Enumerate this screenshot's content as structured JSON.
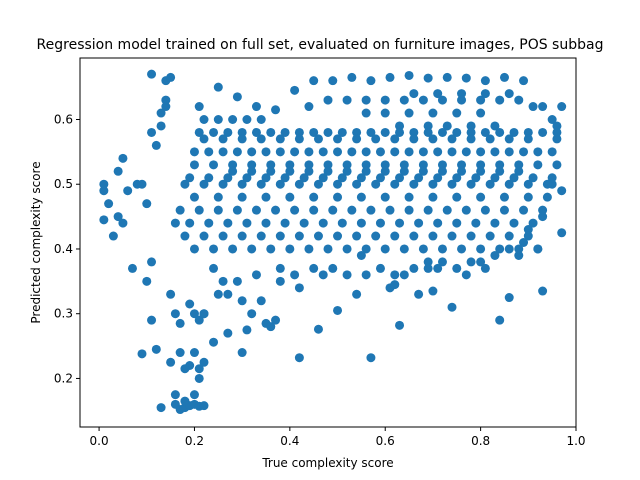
{
  "chart_data": {
    "type": "scatter",
    "title": "Regression model trained on full set, evaluated on furniture images, POS subbag",
    "xlabel": "True complexity score",
    "ylabel": "Predicted complexity score",
    "xlim": [
      -0.04,
      1.0
    ],
    "ylim": [
      0.125,
      0.695
    ],
    "xticks": [
      0.0,
      0.2,
      0.4,
      0.6,
      0.8,
      1.0
    ],
    "xtick_labels": [
      "0.0",
      "0.2",
      "0.4",
      "0.6",
      "0.8",
      "1.0"
    ],
    "yticks": [
      0.2,
      0.3,
      0.4,
      0.5,
      0.6
    ],
    "ytick_labels": [
      "0.2",
      "0.3",
      "0.4",
      "0.5",
      "0.6"
    ],
    "grid": false,
    "legend": "none",
    "marker_color": "#1f77b4",
    "series": [
      {
        "x": [
          0.13,
          0.16,
          0.17,
          0.18,
          0.19,
          0.2,
          0.21,
          0.21,
          0.22,
          0.16,
          0.18,
          0.2,
          0.22,
          0.19,
          0.21,
          0.15,
          0.17,
          0.2,
          0.18,
          0.17,
          0.16,
          0.2,
          0.21,
          0.22,
          0.24,
          0.25,
          0.27,
          0.3,
          0.31,
          0.11,
          0.09,
          0.12,
          0.1,
          0.07,
          0.11,
          0.15,
          0.19,
          0.22,
          0.27,
          0.3,
          0.32,
          0.35,
          0.36,
          0.37,
          0.42,
          0.46,
          0.5,
          0.54,
          0.57,
          0.61,
          0.63,
          0.67,
          0.7,
          0.74,
          0.77,
          0.8,
          0.84,
          0.86,
          0.93,
          0.55,
          0.64,
          0.47,
          0.42,
          0.38,
          0.34,
          0.62,
          0.69,
          0.71,
          0.01,
          0.01,
          0.01,
          0.02,
          0.03,
          0.04,
          0.05,
          0.04,
          0.06,
          0.05,
          0.08,
          0.09,
          0.1,
          0.12,
          0.11,
          0.13,
          0.14,
          0.14,
          0.97,
          0.97,
          0.96,
          0.95,
          0.97,
          0.96,
          0.95,
          0.94,
          0.93,
          0.9,
          0.88,
          0.92,
          0.89,
          0.86,
          0.83,
          0.81,
          0.78,
          0.75,
          0.72,
          0.69,
          0.66,
          0.62,
          0.59,
          0.56,
          0.52,
          0.49,
          0.45,
          0.41,
          0.38,
          0.33,
          0.29,
          0.26,
          0.24,
          0.13,
          0.14,
          0.15,
          0.11,
          0.21,
          0.25,
          0.29,
          0.33,
          0.37,
          0.41,
          0.45,
          0.49,
          0.53,
          0.57,
          0.61,
          0.65,
          0.69,
          0.73,
          0.77,
          0.81,
          0.85,
          0.89,
          0.93,
          0.66,
          0.71,
          0.76,
          0.81,
          0.86,
          0.91,
          0.44,
          0.48,
          0.52,
          0.56,
          0.6,
          0.64,
          0.68,
          0.72,
          0.76,
          0.8,
          0.84,
          0.88,
          0.56,
          0.6,
          0.65,
          0.7,
          0.75,
          0.8,
          0.63,
          0.69,
          0.73,
          0.78,
          0.83,
          0.22,
          0.25,
          0.28,
          0.31,
          0.34,
          0.21,
          0.24,
          0.27,
          0.3,
          0.33,
          0.36,
          0.39,
          0.42,
          0.45,
          0.48,
          0.51,
          0.54,
          0.57,
          0.6,
          0.63,
          0.66,
          0.69,
          0.72,
          0.75,
          0.78,
          0.81,
          0.84,
          0.87,
          0.9,
          0.93,
          0.96,
          0.2,
          0.23,
          0.26,
          0.29,
          0.32,
          0.35,
          0.38,
          0.41,
          0.44,
          0.47,
          0.5,
          0.53,
          0.56,
          0.59,
          0.62,
          0.65,
          0.68,
          0.71,
          0.74,
          0.77,
          0.8,
          0.83,
          0.86,
          0.89,
          0.92,
          0.95,
          0.2,
          0.24,
          0.28,
          0.32,
          0.36,
          0.4,
          0.44,
          0.48,
          0.52,
          0.56,
          0.6,
          0.64,
          0.68,
          0.72,
          0.76,
          0.8,
          0.84,
          0.88,
          0.92,
          0.96,
          0.19,
          0.23,
          0.27,
          0.31,
          0.35,
          0.39,
          0.43,
          0.47,
          0.51,
          0.55,
          0.59,
          0.63,
          0.67,
          0.71,
          0.75,
          0.79,
          0.83,
          0.87,
          0.91,
          0.95,
          0.18,
          0.22,
          0.26,
          0.3,
          0.34,
          0.38,
          0.42,
          0.46,
          0.5,
          0.54,
          0.58,
          0.62,
          0.66,
          0.7,
          0.74,
          0.78,
          0.82,
          0.86,
          0.9,
          0.94,
          0.2,
          0.25,
          0.3,
          0.35,
          0.4,
          0.45,
          0.5,
          0.55,
          0.6,
          0.65,
          0.7,
          0.75,
          0.8,
          0.85,
          0.9,
          0.17,
          0.21,
          0.25,
          0.29,
          0.33,
          0.37,
          0.41,
          0.45,
          0.49,
          0.53,
          0.57,
          0.61,
          0.65,
          0.69,
          0.73,
          0.77,
          0.81,
          0.85,
          0.89,
          0.93,
          0.16,
          0.19,
          0.23,
          0.27,
          0.31,
          0.35,
          0.39,
          0.43,
          0.47,
          0.51,
          0.55,
          0.59,
          0.63,
          0.67,
          0.71,
          0.75,
          0.79,
          0.83,
          0.87,
          0.91,
          0.18,
          0.22,
          0.26,
          0.3,
          0.34,
          0.38,
          0.42,
          0.46,
          0.5,
          0.54,
          0.58,
          0.62,
          0.66,
          0.7,
          0.74,
          0.78,
          0.82,
          0.86,
          0.9,
          0.2,
          0.24,
          0.28,
          0.32,
          0.36,
          0.4,
          0.44,
          0.48,
          0.52,
          0.56,
          0.6,
          0.64,
          0.68,
          0.72,
          0.76,
          0.8,
          0.84,
          0.88,
          0.92,
          0.22,
          0.26,
          0.3,
          0.34,
          0.38,
          0.42,
          0.46,
          0.5,
          0.54,
          0.58,
          0.62,
          0.66,
          0.7,
          0.74,
          0.78,
          0.82,
          0.86,
          0.9,
          0.28,
          0.32,
          0.36,
          0.4,
          0.44,
          0.48,
          0.52,
          0.56,
          0.6,
          0.64,
          0.68,
          0.72,
          0.76,
          0.8,
          0.84,
          0.88
        ],
        "y": [
          0.155,
          0.16,
          0.152,
          0.155,
          0.158,
          0.16,
          0.157,
          0.215,
          0.225,
          0.175,
          0.165,
          0.175,
          0.158,
          0.22,
          0.2,
          0.225,
          0.24,
          0.24,
          0.215,
          0.285,
          0.3,
          0.3,
          0.29,
          0.3,
          0.256,
          0.33,
          0.27,
          0.24,
          0.275,
          0.29,
          0.238,
          0.245,
          0.35,
          0.37,
          0.38,
          0.33,
          0.315,
          0.3,
          0.33,
          0.32,
          0.3,
          0.285,
          0.28,
          0.29,
          0.232,
          0.276,
          0.305,
          0.33,
          0.232,
          0.34,
          0.282,
          0.33,
          0.335,
          0.31,
          0.36,
          0.38,
          0.29,
          0.325,
          0.335,
          0.39,
          0.36,
          0.36,
          0.34,
          0.35,
          0.32,
          0.345,
          0.38,
          0.37,
          0.445,
          0.49,
          0.5,
          0.47,
          0.42,
          0.45,
          0.44,
          0.52,
          0.49,
          0.54,
          0.5,
          0.5,
          0.47,
          0.56,
          0.58,
          0.59,
          0.62,
          0.66,
          0.425,
          0.49,
          0.57,
          0.6,
          0.62,
          0.59,
          0.5,
          0.48,
          0.45,
          0.43,
          0.39,
          0.4,
          0.41,
          0.4,
          0.39,
          0.37,
          0.38,
          0.37,
          0.38,
          0.37,
          0.37,
          0.36,
          0.37,
          0.36,
          0.36,
          0.37,
          0.37,
          0.36,
          0.37,
          0.36,
          0.35,
          0.35,
          0.37,
          0.61,
          0.63,
          0.665,
          0.67,
          0.62,
          0.65,
          0.635,
          0.62,
          0.615,
          0.645,
          0.66,
          0.66,
          0.665,
          0.66,
          0.665,
          0.668,
          0.664,
          0.665,
          0.664,
          0.66,
          0.665,
          0.66,
          0.62,
          0.64,
          0.64,
          0.64,
          0.64,
          0.64,
          0.62,
          0.62,
          0.63,
          0.63,
          0.63,
          0.63,
          0.63,
          0.63,
          0.63,
          0.63,
          0.63,
          0.63,
          0.63,
          0.61,
          0.61,
          0.61,
          0.61,
          0.61,
          0.61,
          0.59,
          0.59,
          0.59,
          0.59,
          0.59,
          0.6,
          0.6,
          0.6,
          0.6,
          0.6,
          0.58,
          0.58,
          0.58,
          0.58,
          0.58,
          0.58,
          0.58,
          0.58,
          0.58,
          0.58,
          0.58,
          0.58,
          0.58,
          0.58,
          0.58,
          0.58,
          0.58,
          0.58,
          0.58,
          0.58,
          0.58,
          0.58,
          0.58,
          0.58,
          0.58,
          0.58,
          0.55,
          0.55,
          0.55,
          0.55,
          0.55,
          0.55,
          0.55,
          0.55,
          0.55,
          0.55,
          0.55,
          0.55,
          0.55,
          0.55,
          0.55,
          0.55,
          0.55,
          0.55,
          0.55,
          0.55,
          0.55,
          0.55,
          0.55,
          0.55,
          0.55,
          0.55,
          0.53,
          0.53,
          0.53,
          0.53,
          0.53,
          0.53,
          0.53,
          0.53,
          0.53,
          0.53,
          0.53,
          0.53,
          0.53,
          0.53,
          0.53,
          0.53,
          0.53,
          0.53,
          0.53,
          0.53,
          0.51,
          0.51,
          0.51,
          0.51,
          0.51,
          0.51,
          0.51,
          0.51,
          0.51,
          0.51,
          0.51,
          0.51,
          0.51,
          0.51,
          0.51,
          0.51,
          0.51,
          0.51,
          0.51,
          0.51,
          0.5,
          0.5,
          0.5,
          0.5,
          0.5,
          0.5,
          0.5,
          0.5,
          0.5,
          0.5,
          0.5,
          0.5,
          0.5,
          0.5,
          0.5,
          0.5,
          0.5,
          0.5,
          0.5,
          0.5,
          0.48,
          0.48,
          0.48,
          0.48,
          0.48,
          0.48,
          0.48,
          0.48,
          0.48,
          0.48,
          0.48,
          0.48,
          0.48,
          0.48,
          0.48,
          0.46,
          0.46,
          0.46,
          0.46,
          0.46,
          0.46,
          0.46,
          0.46,
          0.46,
          0.46,
          0.46,
          0.46,
          0.46,
          0.46,
          0.46,
          0.46,
          0.46,
          0.46,
          0.46,
          0.46,
          0.44,
          0.44,
          0.44,
          0.44,
          0.44,
          0.44,
          0.44,
          0.44,
          0.44,
          0.44,
          0.44,
          0.44,
          0.44,
          0.44,
          0.44,
          0.44,
          0.44,
          0.44,
          0.44,
          0.44,
          0.42,
          0.42,
          0.42,
          0.42,
          0.42,
          0.42,
          0.42,
          0.42,
          0.42,
          0.42,
          0.42,
          0.42,
          0.42,
          0.42,
          0.42,
          0.42,
          0.42,
          0.42,
          0.42,
          0.4,
          0.4,
          0.4,
          0.4,
          0.4,
          0.4,
          0.4,
          0.4,
          0.4,
          0.4,
          0.4,
          0.4,
          0.4,
          0.4,
          0.4,
          0.4,
          0.4,
          0.4,
          0.4,
          0.57,
          0.57,
          0.57,
          0.57,
          0.57,
          0.57,
          0.57,
          0.57,
          0.57,
          0.57,
          0.57,
          0.57,
          0.57,
          0.57,
          0.57,
          0.57,
          0.57,
          0.57,
          0.52,
          0.52,
          0.52,
          0.52,
          0.52,
          0.52,
          0.52,
          0.52,
          0.52,
          0.52,
          0.52,
          0.52,
          0.52,
          0.52,
          0.52,
          0.52
        ]
      }
    ]
  }
}
